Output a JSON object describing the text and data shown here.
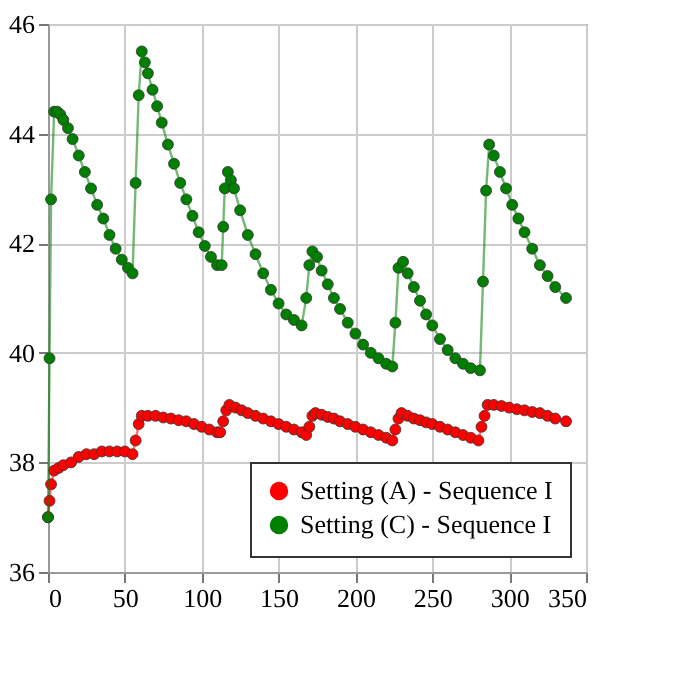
{
  "chart_data": {
    "type": "line",
    "xlim": [
      0,
      350
    ],
    "ylim": [
      36,
      46
    ],
    "xticks": [
      0,
      50,
      100,
      150,
      200,
      250,
      300,
      350
    ],
    "yticks": [
      36,
      38,
      40,
      42,
      44,
      46
    ],
    "grid": true,
    "legend": "bottom right",
    "marker": "circle",
    "line_style": "solid",
    "series": [
      {
        "name": "Setting (A) - Sequence I",
        "color": "#ff0000",
        "x": [
          0,
          1,
          2,
          4,
          7,
          10,
          15,
          20,
          25,
          30,
          35,
          40,
          45,
          50,
          55,
          57,
          59,
          61,
          65,
          70,
          75,
          80,
          85,
          90,
          95,
          100,
          105,
          110,
          112,
          114,
          116,
          118,
          122,
          126,
          130,
          135,
          140,
          145,
          150,
          155,
          160,
          165,
          168,
          170,
          172,
          174,
          178,
          182,
          186,
          190,
          195,
          200,
          205,
          210,
          215,
          220,
          224,
          226,
          228,
          230,
          234,
          238,
          242,
          246,
          250,
          255,
          260,
          265,
          270,
          275,
          280,
          282,
          284,
          286,
          290,
          295,
          300,
          305,
          310,
          315,
          320,
          325,
          330,
          337
        ],
        "values": [
          37.0,
          37.3,
          37.6,
          37.85,
          37.9,
          37.95,
          38.0,
          38.1,
          38.15,
          38.15,
          38.2,
          38.2,
          38.2,
          38.2,
          38.15,
          38.4,
          38.7,
          38.85,
          38.85,
          38.85,
          38.82,
          38.8,
          38.77,
          38.75,
          38.7,
          38.65,
          38.6,
          38.55,
          38.55,
          38.75,
          38.95,
          39.05,
          39.0,
          38.95,
          38.9,
          38.85,
          38.8,
          38.75,
          38.7,
          38.65,
          38.6,
          38.55,
          38.5,
          38.65,
          38.85,
          38.9,
          38.87,
          38.83,
          38.8,
          38.75,
          38.7,
          38.65,
          38.6,
          38.55,
          38.5,
          38.45,
          38.4,
          38.6,
          38.8,
          38.9,
          38.85,
          38.8,
          38.77,
          38.73,
          38.7,
          38.65,
          38.6,
          38.55,
          38.5,
          38.45,
          38.4,
          38.65,
          38.85,
          39.05,
          39.05,
          39.03,
          39.0,
          38.97,
          38.95,
          38.92,
          38.9,
          38.85,
          38.8,
          38.75
        ]
      },
      {
        "name": "Setting (C) - Sequence I",
        "color": "#007f00",
        "x": [
          0,
          1,
          2,
          4,
          6,
          8,
          10,
          13,
          16,
          20,
          24,
          28,
          32,
          36,
          40,
          44,
          48,
          52,
          55,
          57,
          59,
          61,
          63,
          65,
          68,
          71,
          74,
          78,
          82,
          86,
          90,
          94,
          98,
          102,
          106,
          110,
          113,
          114,
          115,
          117,
          119,
          121,
          125,
          130,
          135,
          140,
          145,
          150,
          155,
          160,
          165,
          168,
          170,
          172,
          175,
          178,
          182,
          186,
          190,
          195,
          200,
          205,
          210,
          215,
          220,
          224,
          226,
          228,
          231,
          234,
          238,
          242,
          246,
          250,
          255,
          260,
          265,
          270,
          275,
          281,
          283,
          285,
          287,
          290,
          294,
          298,
          302,
          306,
          310,
          315,
          320,
          325,
          330,
          337
        ],
        "values": [
          37.0,
          39.9,
          42.8,
          44.4,
          44.4,
          44.35,
          44.25,
          44.1,
          43.9,
          43.6,
          43.3,
          43.0,
          42.7,
          42.45,
          42.15,
          41.9,
          41.7,
          41.55,
          41.45,
          43.1,
          44.7,
          45.5,
          45.3,
          45.1,
          44.8,
          44.5,
          44.2,
          43.8,
          43.45,
          43.1,
          42.8,
          42.5,
          42.2,
          41.95,
          41.75,
          41.6,
          41.6,
          42.3,
          43.0,
          43.3,
          43.15,
          43.0,
          42.6,
          42.15,
          41.8,
          41.45,
          41.15,
          40.9,
          40.7,
          40.6,
          40.5,
          41.0,
          41.6,
          41.85,
          41.75,
          41.5,
          41.25,
          41.0,
          40.8,
          40.55,
          40.35,
          40.15,
          40.0,
          39.9,
          39.8,
          39.75,
          40.55,
          41.55,
          41.66,
          41.45,
          41.2,
          40.95,
          40.7,
          40.5,
          40.25,
          40.05,
          39.9,
          39.8,
          39.72,
          39.68,
          41.3,
          42.96,
          43.8,
          43.6,
          43.3,
          43.0,
          42.7,
          42.45,
          42.2,
          41.9,
          41.6,
          41.4,
          41.2,
          41.0
        ]
      }
    ]
  }
}
